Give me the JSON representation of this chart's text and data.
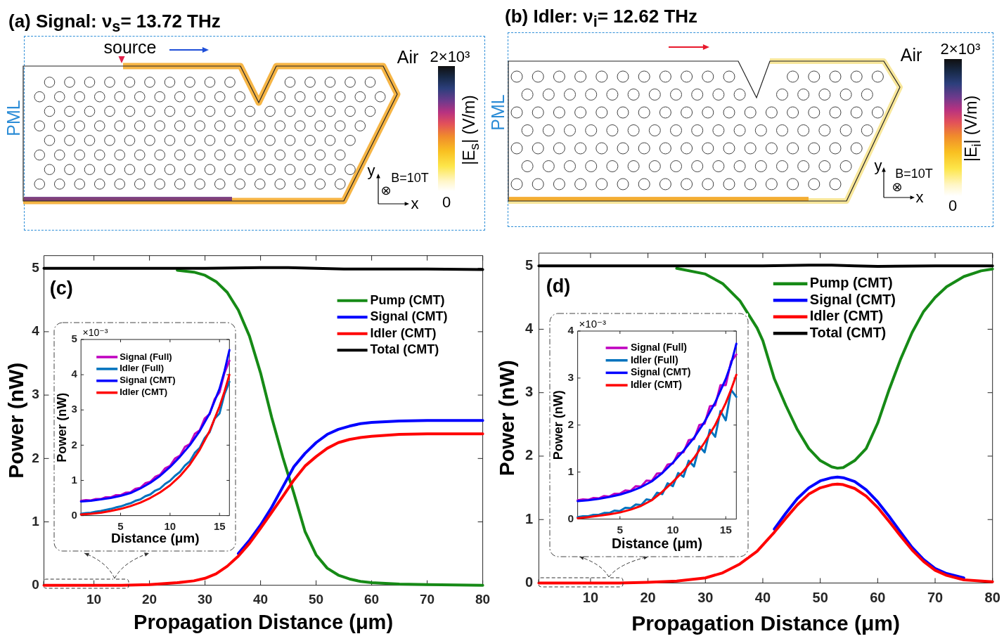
{
  "chart_data": [
    {
      "type": "other",
      "title": "(a) Signal: ν$_{s}$= 13.72 THz",
      "clabel": "|E$_{s}$| (V/m)",
      "annotations": [
        "source",
        "Air",
        "PML",
        "y",
        "B=10T",
        "⊗",
        "x",
        "2×10³",
        "0"
      ]
    },
    {
      "type": "other",
      "title": "(b) Idler: ν$_{i}$= 12.62 THz",
      "clabel": "|E$_{i}$| (V/m)",
      "annotations": [
        "Air",
        "PML",
        "y",
        "B=10T",
        "⊗",
        "x",
        "2×10³",
        "0"
      ]
    },
    {
      "type": "line",
      "xlabel": "Propagation Distance (μm)",
      "ylabel": "Power (nW)",
      "xlim": [
        1,
        80
      ],
      "ylim": [
        0,
        5.2
      ],
      "xticks": [
        10,
        20,
        30,
        40,
        50,
        60,
        70,
        80
      ],
      "yticks": [
        0,
        1,
        2,
        3,
        4,
        5
      ],
      "legend": "top right",
      "annotations": [
        "(c)"
      ],
      "series": [
        {
          "name": "Pump (CMT)",
          "color": "#168a16",
          "x": [
            25,
            28,
            30,
            32,
            34,
            36,
            38,
            40,
            42,
            44,
            46,
            48,
            50,
            52,
            54,
            56,
            58,
            60,
            65,
            70,
            80
          ],
          "values": [
            4.97,
            4.94,
            4.89,
            4.79,
            4.62,
            4.34,
            3.93,
            3.35,
            2.65,
            2.02,
            1.45,
            0.85,
            0.48,
            0.27,
            0.16,
            0.1,
            0.06,
            0.04,
            0.02,
            0.01,
            0
          ]
        },
        {
          "name": "Signal (CMT)",
          "color": "#0000ff",
          "x": [
            36,
            38,
            40,
            42,
            44,
            46,
            48,
            50,
            52,
            54,
            56,
            58,
            60,
            65,
            70,
            80
          ],
          "values": [
            0.5,
            0.71,
            0.95,
            1.23,
            1.55,
            1.87,
            2.08,
            2.25,
            2.38,
            2.46,
            2.51,
            2.55,
            2.57,
            2.59,
            2.6,
            2.6
          ]
        },
        {
          "name": "Idler (CMT)",
          "color": "#ff0000",
          "x": [
            1,
            10,
            15,
            20,
            25,
            28,
            30,
            32,
            34,
            36,
            38,
            40,
            42,
            44,
            46,
            48,
            50,
            52,
            54,
            56,
            58,
            60,
            65,
            70,
            80
          ],
          "values": [
            0,
            0,
            0,
            0.01,
            0.04,
            0.07,
            0.11,
            0.18,
            0.3,
            0.46,
            0.66,
            0.9,
            1.15,
            1.4,
            1.66,
            1.88,
            2.03,
            2.16,
            2.25,
            2.3,
            2.33,
            2.35,
            2.38,
            2.39,
            2.39
          ]
        },
        {
          "name": "Total (CMT)",
          "color": "#000000",
          "x": [
            1,
            10,
            20,
            30,
            40,
            45,
            50,
            55,
            60,
            70,
            80
          ],
          "values": [
            5,
            5,
            5,
            5,
            5.01,
            5.01,
            5,
            4.99,
            4.99,
            4.99,
            4.98
          ]
        }
      ]
    },
    {
      "type": "line",
      "xlabel": "Distance (μm)",
      "ylabel": "Power (nW)",
      "xlim": [
        1,
        16
      ],
      "ylim": [
        0,
        5
      ],
      "xticks": [
        5,
        10,
        15
      ],
      "yticks": [
        0,
        1,
        2,
        3,
        4,
        5
      ],
      "legend": "top left",
      "annotations": [
        "×10⁻³"
      ],
      "series": [
        {
          "name": "Signal (Full)",
          "color": "#bf00bf",
          "x": [
            1,
            1.5,
            2,
            2.5,
            3,
            3.5,
            4,
            4.5,
            5,
            5.5,
            6,
            6.5,
            7,
            7.5,
            8,
            8.5,
            9,
            9.5,
            10,
            10.5,
            11,
            11.5,
            12,
            12.5,
            13,
            13.5,
            14,
            14.5,
            15,
            15.5,
            16
          ],
          "values": [
            0.42,
            0.44,
            0.43,
            0.47,
            0.47,
            0.52,
            0.52,
            0.58,
            0.58,
            0.65,
            0.66,
            0.76,
            0.79,
            0.92,
            0.96,
            1.1,
            1.16,
            1.34,
            1.41,
            1.62,
            1.7,
            1.95,
            2.03,
            2.32,
            2.42,
            2.76,
            2.88,
            3.3,
            3.5,
            4.05,
            4.4
          ]
        },
        {
          "name": "Idler (Full)",
          "color": "#0072bd",
          "x": [
            1,
            1.5,
            2,
            2.5,
            3,
            3.5,
            4,
            4.5,
            5,
            5.5,
            6,
            6.5,
            7,
            7.5,
            8,
            8.5,
            9,
            9.5,
            10,
            10.5,
            11,
            11.5,
            12,
            12.5,
            13,
            13.5,
            14,
            14.5,
            15,
            15.5,
            16
          ],
          "values": [
            0.05,
            0.07,
            0.08,
            0.11,
            0.13,
            0.16,
            0.19,
            0.23,
            0.26,
            0.31,
            0.35,
            0.42,
            0.46,
            0.55,
            0.6,
            0.71,
            0.77,
            0.9,
            0.99,
            1.13,
            1.24,
            1.42,
            1.54,
            1.78,
            1.92,
            2.2,
            2.37,
            2.75,
            2.9,
            3.45,
            3.8
          ]
        },
        {
          "name": "Signal (CMT)",
          "color": "#0000ff",
          "x": [
            1,
            2,
            3,
            4,
            5,
            6,
            7,
            8,
            9,
            10,
            11,
            12,
            13,
            14,
            15,
            15.5,
            16
          ],
          "values": [
            0.4,
            0.42,
            0.46,
            0.5,
            0.56,
            0.64,
            0.77,
            0.93,
            1.13,
            1.38,
            1.67,
            2,
            2.4,
            2.9,
            3.6,
            4.1,
            4.7
          ]
        },
        {
          "name": "Idler (CMT)",
          "color": "#ff0000",
          "x": [
            1,
            2,
            3,
            4,
            5,
            6,
            7,
            8,
            9,
            10,
            11,
            12,
            13,
            14,
            15,
            15.5,
            16
          ],
          "values": [
            0.03,
            0.05,
            0.08,
            0.13,
            0.19,
            0.27,
            0.37,
            0.5,
            0.66,
            0.86,
            1.12,
            1.45,
            1.87,
            2.4,
            3.1,
            3.52,
            4
          ]
        }
      ]
    },
    {
      "type": "line",
      "xlabel": "Propagation Distance (μm)",
      "ylabel": "Power (nW)",
      "xlim": [
        1,
        80
      ],
      "ylim": [
        0,
        5.2
      ],
      "xticks": [
        10,
        20,
        30,
        40,
        50,
        60,
        70,
        80
      ],
      "yticks": [
        0,
        1,
        2,
        3,
        4,
        5
      ],
      "legend": "top right",
      "annotations": [
        "(d)"
      ],
      "series": [
        {
          "name": "Pump (CMT)",
          "color": "#168a16",
          "x": [
            25,
            30,
            33,
            36,
            39,
            40,
            42,
            44,
            46,
            48,
            50,
            52,
            53,
            54,
            56,
            58,
            60,
            62,
            64,
            66,
            68,
            70,
            72,
            75,
            78,
            80
          ],
          "values": [
            4.96,
            4.87,
            4.72,
            4.45,
            4.02,
            3.82,
            3.22,
            2.8,
            2.42,
            2.12,
            1.93,
            1.83,
            1.81,
            1.82,
            1.93,
            2.12,
            2.52,
            3.05,
            3.53,
            3.95,
            4.28,
            4.5,
            4.67,
            4.83,
            4.92,
            4.95
          ]
        },
        {
          "name": "Signal (CMT)",
          "color": "#0000ff",
          "x": [
            42,
            44,
            46,
            48,
            50,
            52,
            53,
            54,
            56,
            58,
            60,
            62,
            64,
            66,
            68,
            70,
            72,
            75
          ],
          "values": [
            0.85,
            1.1,
            1.33,
            1.5,
            1.61,
            1.66,
            1.67,
            1.66,
            1.6,
            1.47,
            1.28,
            1.05,
            0.8,
            0.56,
            0.37,
            0.23,
            0.15,
            0.08
          ]
        },
        {
          "name": "Idler (CMT)",
          "color": "#ff0000",
          "x": [
            1,
            10,
            15,
            20,
            25,
            30,
            33,
            36,
            39,
            42,
            44,
            46,
            48,
            50,
            52,
            53,
            54,
            56,
            58,
            60,
            62,
            64,
            66,
            68,
            70,
            72,
            75,
            80
          ],
          "values": [
            0,
            0,
            0,
            0.01,
            0.03,
            0.08,
            0.16,
            0.3,
            0.5,
            0.8,
            1.02,
            1.23,
            1.4,
            1.5,
            1.55,
            1.56,
            1.55,
            1.49,
            1.37,
            1.19,
            0.97,
            0.74,
            0.52,
            0.34,
            0.2,
            0.12,
            0.05,
            0.02
          ]
        },
        {
          "name": "Total (CMT)",
          "color": "#000000",
          "x": [
            1,
            20,
            40,
            48,
            52,
            56,
            60,
            70,
            80
          ],
          "values": [
            5,
            5,
            5,
            5.01,
            5.01,
            5,
            4.99,
            5,
            5
          ]
        }
      ]
    },
    {
      "type": "line",
      "xlabel": "Distance (μm)",
      "ylabel": "Power (nW)",
      "xlim": [
        1,
        16
      ],
      "ylim": [
        0,
        4
      ],
      "xticks": [
        5,
        10,
        15
      ],
      "yticks": [
        0,
        1,
        2,
        3,
        4
      ],
      "legend": "top left",
      "annotations": [
        "×10⁻³"
      ],
      "series": [
        {
          "name": "Signal (Full)",
          "color": "#bf00bf",
          "x": [
            1,
            1.5,
            2,
            2.5,
            3,
            3.5,
            4,
            4.5,
            5,
            5.5,
            6,
            6.5,
            7,
            7.5,
            8,
            8.5,
            9,
            9.5,
            10,
            10.5,
            11,
            11.5,
            12,
            12.5,
            13,
            13.5,
            14,
            14.5,
            15,
            15.5,
            16
          ],
          "values": [
            0.4,
            0.42,
            0.41,
            0.45,
            0.44,
            0.49,
            0.48,
            0.54,
            0.54,
            0.61,
            0.6,
            0.7,
            0.69,
            0.82,
            0.81,
            0.97,
            0.98,
            1.16,
            1.18,
            1.4,
            1.42,
            1.68,
            1.7,
            2,
            2.03,
            2.4,
            2.42,
            2.85,
            2.85,
            3.35,
            3.5
          ]
        },
        {
          "name": "Idler (Full)",
          "color": "#0072bd",
          "x": [
            1,
            1.5,
            2,
            2.5,
            3,
            3.5,
            4,
            4.5,
            5,
            5.5,
            6,
            6.5,
            7,
            7.5,
            8,
            8.5,
            9,
            9.5,
            10,
            10.5,
            11,
            11.5,
            12,
            12.5,
            13,
            13.5,
            14,
            14.5,
            15,
            15.5,
            16
          ],
          "values": [
            0.04,
            0.06,
            0.06,
            0.09,
            0.09,
            0.13,
            0.13,
            0.18,
            0.17,
            0.24,
            0.23,
            0.31,
            0.3,
            0.42,
            0.4,
            0.56,
            0.53,
            0.76,
            0.7,
            0.98,
            0.9,
            1.24,
            1.12,
            1.55,
            1.42,
            1.9,
            1.75,
            2.3,
            2.1,
            2.75,
            2.6
          ]
        },
        {
          "name": "Signal (CMT)",
          "color": "#0000ff",
          "x": [
            1,
            2,
            3,
            4,
            5,
            6,
            7,
            8,
            9,
            10,
            11,
            12,
            13,
            14,
            15,
            15.5,
            16
          ],
          "values": [
            0.38,
            0.4,
            0.43,
            0.47,
            0.52,
            0.59,
            0.68,
            0.8,
            0.98,
            1.2,
            1.45,
            1.73,
            2.07,
            2.48,
            2.98,
            3.3,
            3.73
          ]
        },
        {
          "name": "Idler (CMT)",
          "color": "#ff0000",
          "x": [
            1,
            2,
            3,
            4,
            5,
            6,
            7,
            8,
            9,
            10,
            11,
            12,
            13,
            14,
            15,
            15.5,
            16
          ],
          "values": [
            0.02,
            0.04,
            0.07,
            0.1,
            0.14,
            0.2,
            0.28,
            0.4,
            0.58,
            0.79,
            1.02,
            1.3,
            1.63,
            2,
            2.47,
            2.75,
            3.07
          ]
        }
      ]
    }
  ]
}
